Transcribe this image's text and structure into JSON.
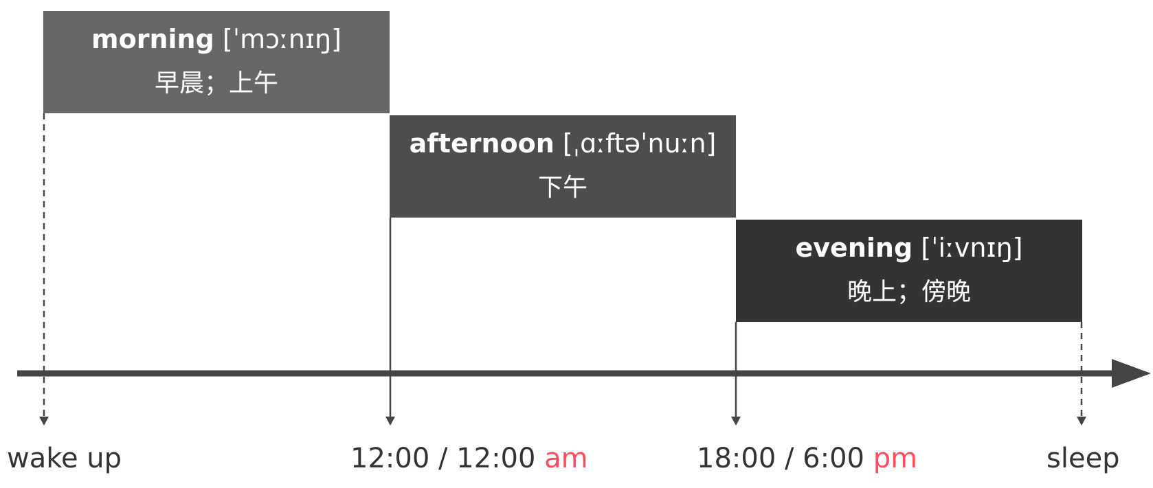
{
  "blocks": {
    "morning": {
      "word": "morning",
      "ipa": "[ˈmɔːnɪŋ]",
      "chinese": "早晨；上午",
      "color": "#666666"
    },
    "afternoon": {
      "word": "afternoon",
      "ipa": "[ˌɑːftəˈnuːn]",
      "chinese": "下午",
      "color": "#4d4d4d"
    },
    "evening": {
      "word": "evening",
      "ipa": "[ˈiːvnɪŋ]",
      "chinese": "晚上；傍晚",
      "color": "#333333"
    }
  },
  "timeline": {
    "wake_up": "wake up",
    "noon_time": "12:00 / 12:00",
    "noon_suffix": "am",
    "evening_time": "18:00 / 6:00",
    "evening_suffix": "pm",
    "sleep": "sleep"
  },
  "colors": {
    "axis": "#444444",
    "suffix": "#ff4d5e",
    "text": "#333333"
  }
}
